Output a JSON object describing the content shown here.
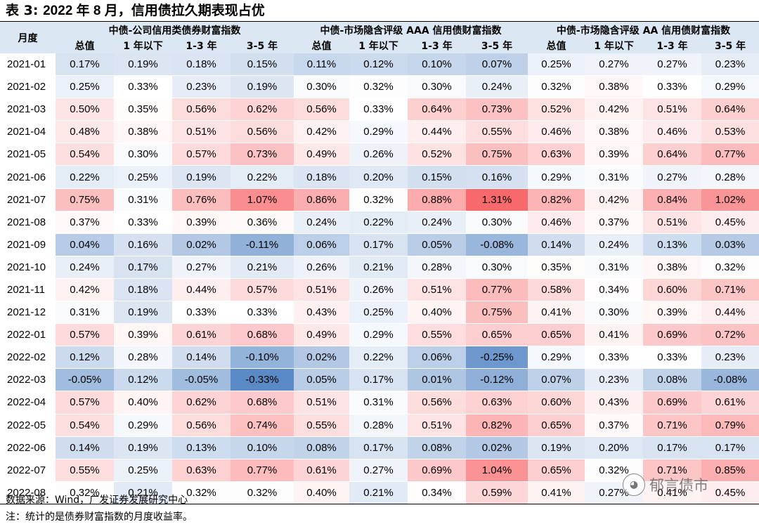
{
  "title_prefix": "表 3: ",
  "title_main": "2022 年 8 月，信用债拉久期表现占优",
  "header": {
    "month_label": "月度",
    "groups": [
      "中债-公司信用类债券财富指数",
      "中债-市场隐含评级 AAA 信用债财富指数",
      "中债-市场隐含评级 AA 信用债财富指数"
    ],
    "subcols": [
      "总值",
      "1 年以下",
      "1-3 年",
      "3-5 年"
    ]
  },
  "rows": [
    {
      "month": "2021-01",
      "values": [
        "0.17%",
        "0.19%",
        "0.18%",
        "0.15%",
        "0.11%",
        "0.12%",
        "0.10%",
        "0.07%",
        "0.25%",
        "0.27%",
        "0.27%",
        "0.23%"
      ]
    },
    {
      "month": "2021-02",
      "values": [
        "0.25%",
        "0.33%",
        "0.23%",
        "0.19%",
        "0.30%",
        "0.32%",
        "0.30%",
        "0.24%",
        "0.32%",
        "0.38%",
        "0.33%",
        "0.29%"
      ]
    },
    {
      "month": "2021-03",
      "values": [
        "0.50%",
        "0.35%",
        "0.56%",
        "0.62%",
        "0.56%",
        "0.33%",
        "0.64%",
        "0.73%",
        "0.52%",
        "0.42%",
        "0.51%",
        "0.64%"
      ]
    },
    {
      "month": "2021-04",
      "values": [
        "0.48%",
        "0.38%",
        "0.51%",
        "0.56%",
        "0.42%",
        "0.29%",
        "0.44%",
        "0.55%",
        "0.46%",
        "0.38%",
        "0.46%",
        "0.53%"
      ]
    },
    {
      "month": "2021-05",
      "values": [
        "0.54%",
        "0.30%",
        "0.57%",
        "0.73%",
        "0.49%",
        "0.26%",
        "0.52%",
        "0.75%",
        "0.63%",
        "0.39%",
        "0.64%",
        "0.77%"
      ]
    },
    {
      "month": "2021-06",
      "values": [
        "0.22%",
        "0.25%",
        "0.19%",
        "0.22%",
        "0.18%",
        "0.20%",
        "0.15%",
        "0.16%",
        "0.29%",
        "0.31%",
        "0.27%",
        "0.28%"
      ]
    },
    {
      "month": "2021-07",
      "values": [
        "0.75%",
        "0.31%",
        "0.76%",
        "1.07%",
        "0.86%",
        "0.32%",
        "0.88%",
        "1.31%",
        "0.82%",
        "0.42%",
        "0.84%",
        "1.02%"
      ]
    },
    {
      "month": "2021-08",
      "values": [
        "0.37%",
        "0.33%",
        "0.39%",
        "0.36%",
        "0.24%",
        "0.22%",
        "0.24%",
        "0.30%",
        "0.46%",
        "0.37%",
        "0.51%",
        "0.45%"
      ]
    },
    {
      "month": "2021-09",
      "values": [
        "0.04%",
        "0.16%",
        "0.02%",
        "-0.11%",
        "0.06%",
        "0.17%",
        "0.05%",
        "-0.08%",
        "0.14%",
        "0.24%",
        "0.13%",
        "0.03%"
      ]
    },
    {
      "month": "2021-10",
      "values": [
        "0.24%",
        "0.17%",
        "0.27%",
        "0.21%",
        "0.26%",
        "0.21%",
        "0.28%",
        "0.30%",
        "0.35%",
        "0.31%",
        "0.38%",
        "0.32%"
      ]
    },
    {
      "month": "2021-11",
      "values": [
        "0.42%",
        "0.18%",
        "0.44%",
        "0.57%",
        "0.51%",
        "0.26%",
        "0.51%",
        "0.77%",
        "0.58%",
        "0.34%",
        "0.60%",
        "0.71%"
      ]
    },
    {
      "month": "2021-12",
      "values": [
        "0.31%",
        "0.19%",
        "0.33%",
        "0.33%",
        "0.43%",
        "0.25%",
        "0.40%",
        "0.75%",
        "0.41%",
        "0.30%",
        "0.39%",
        "0.44%"
      ]
    },
    {
      "month": "2022-01",
      "values": [
        "0.57%",
        "0.39%",
        "0.61%",
        "0.68%",
        "0.49%",
        "0.29%",
        "0.55%",
        "0.65%",
        "0.65%",
        "0.41%",
        "0.69%",
        "0.72%"
      ]
    },
    {
      "month": "2022-02",
      "values": [
        "0.12%",
        "0.28%",
        "0.14%",
        "-0.10%",
        "0.02%",
        "0.22%",
        "0.06%",
        "-0.25%",
        "0.29%",
        "0.33%",
        "0.33%",
        "0.23%"
      ]
    },
    {
      "month": "2022-03",
      "values": [
        "-0.05%",
        "0.12%",
        "-0.05%",
        "-0.33%",
        "0.05%",
        "0.17%",
        "0.01%",
        "-0.12%",
        "0.07%",
        "0.23%",
        "0.08%",
        "-0.08%"
      ]
    },
    {
      "month": "2022-04",
      "values": [
        "0.57%",
        "0.40%",
        "0.62%",
        "0.68%",
        "0.51%",
        "0.31%",
        "0.56%",
        "0.63%",
        "0.60%",
        "0.43%",
        "0.69%",
        "0.61%"
      ]
    },
    {
      "month": "2022-05",
      "values": [
        "0.54%",
        "0.29%",
        "0.56%",
        "0.74%",
        "0.55%",
        "0.28%",
        "0.51%",
        "0.82%",
        "0.65%",
        "0.37%",
        "0.71%",
        "0.79%"
      ]
    },
    {
      "month": "2022-06",
      "values": [
        "0.14%",
        "0.19%",
        "0.13%",
        "0.10%",
        "0.08%",
        "0.17%",
        "0.08%",
        "0.02%",
        "0.19%",
        "0.20%",
        "0.17%",
        "0.17%"
      ]
    },
    {
      "month": "2022-07",
      "values": [
        "0.55%",
        "0.25%",
        "0.63%",
        "0.77%",
        "0.61%",
        "0.27%",
        "0.69%",
        "1.04%",
        "0.65%",
        "0.32%",
        "0.71%",
        "0.85%"
      ]
    },
    {
      "month": "2022-08",
      "values": [
        "0.32%",
        "0.21%",
        "0.32%",
        "0.32%",
        "0.40%",
        "0.21%",
        "0.34%",
        "0.59%",
        "0.41%",
        "0.27%",
        "0.41%",
        "0.45%"
      ]
    }
  ],
  "notes": {
    "source": "数据来源：Wind，广发证券发展研究中心",
    "note": "注：统计的是债券财富指数的月度收益率。"
  },
  "watermark": {
    "text": "郁言债市",
    "icon": "wechat-icon"
  },
  "colors": {
    "header_bg": "#dbe7f3",
    "high": "#f8696b",
    "mid": "#ffffff",
    "low": "#5a8ac6"
  }
}
